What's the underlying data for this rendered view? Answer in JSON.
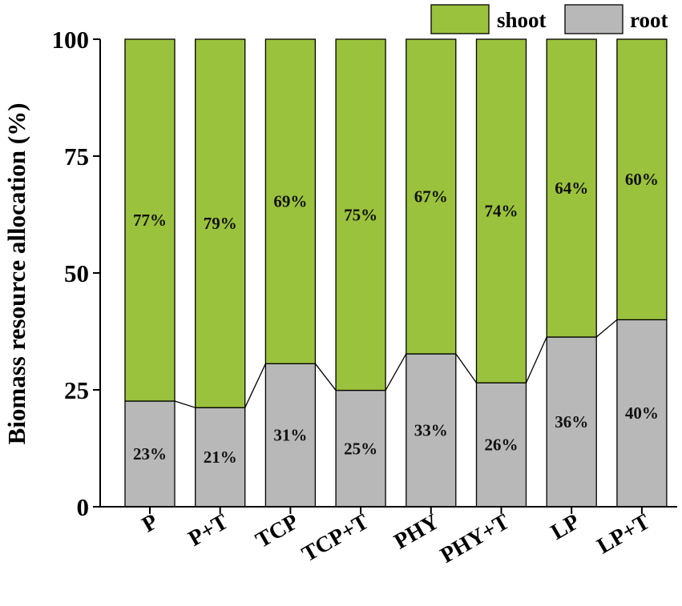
{
  "chart_data": {
    "type": "bar",
    "stacked": true,
    "ylabel": "Biomass resource allocation (%)",
    "xlabel": "",
    "ylim": [
      0,
      100
    ],
    "yticks": [
      0,
      25,
      50,
      75,
      100
    ],
    "categories": [
      "P",
      "P+T",
      "TCP",
      "TCP+T",
      "PHY",
      "PHY+T",
      "LP",
      "LP+T"
    ],
    "series": [
      {
        "name": "root",
        "color": "#b8b8b8",
        "values": [
          22.6,
          21.2,
          30.6,
          24.9,
          32.7,
          26.5,
          36.3,
          40.0
        ],
        "labels": [
          "23%",
          "21%",
          "31%",
          "25%",
          "33%",
          "26%",
          "36%",
          "40%"
        ]
      },
      {
        "name": "shoot",
        "color": "#9bc23c",
        "values": [
          77.4,
          78.8,
          69.4,
          75.1,
          67.3,
          73.5,
          63.7,
          60.0
        ],
        "labels": [
          "77%",
          "79%",
          "69%",
          "75%",
          "67%",
          "74%",
          "64%",
          "60%"
        ]
      }
    ],
    "legend": {
      "placement": "top-right",
      "order": [
        "shoot",
        "root"
      ]
    },
    "connector_lines": true,
    "grid": false
  }
}
